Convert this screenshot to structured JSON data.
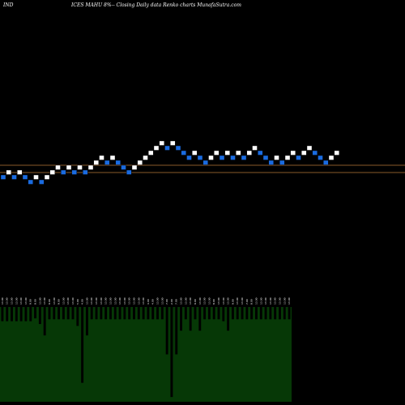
{
  "header": {
    "left": "IND",
    "title": "ICES MAHU 8%--  Closing Daily data  Renko  charts MunafaSutra.com"
  },
  "colors": {
    "background": "#000000",
    "up_brick": "#ffffff",
    "down_brick": "#1a6be0",
    "guide_line": "#8a5a2a",
    "volume_fill": "#063806",
    "volume_edge": "#0a5a0a",
    "volume_label": "#ffffff"
  },
  "chart_data": [
    {
      "type": "renko",
      "title": "ICES MAHU 8%--  Closing Daily data  Renko  charts MunafaSutra.com",
      "note": "brick level in brick-size units, relative to the first brick; dir up/down",
      "bricks": [
        {
          "level": 0,
          "dir": "down"
        },
        {
          "level": 1,
          "dir": "up"
        },
        {
          "level": 0,
          "dir": "down"
        },
        {
          "level": 1,
          "dir": "up"
        },
        {
          "level": 0,
          "dir": "down"
        },
        {
          "level": -1,
          "dir": "down"
        },
        {
          "level": 0,
          "dir": "up"
        },
        {
          "level": -1,
          "dir": "down"
        },
        {
          "level": 0,
          "dir": "up"
        },
        {
          "level": 1,
          "dir": "up"
        },
        {
          "level": 2,
          "dir": "up"
        },
        {
          "level": 1,
          "dir": "down"
        },
        {
          "level": 2,
          "dir": "up"
        },
        {
          "level": 1,
          "dir": "down"
        },
        {
          "level": 2,
          "dir": "up"
        },
        {
          "level": 1,
          "dir": "down"
        },
        {
          "level": 2,
          "dir": "up"
        },
        {
          "level": 3,
          "dir": "up"
        },
        {
          "level": 4,
          "dir": "up"
        },
        {
          "level": 3,
          "dir": "down"
        },
        {
          "level": 4,
          "dir": "up"
        },
        {
          "level": 3,
          "dir": "down"
        },
        {
          "level": 2,
          "dir": "down"
        },
        {
          "level": 1,
          "dir": "down"
        },
        {
          "level": 2,
          "dir": "up"
        },
        {
          "level": 3,
          "dir": "up"
        },
        {
          "level": 4,
          "dir": "up"
        },
        {
          "level": 5,
          "dir": "up"
        },
        {
          "level": 6,
          "dir": "up"
        },
        {
          "level": 7,
          "dir": "up"
        },
        {
          "level": 6,
          "dir": "down"
        },
        {
          "level": 7,
          "dir": "up"
        },
        {
          "level": 6,
          "dir": "down"
        },
        {
          "level": 5,
          "dir": "down"
        },
        {
          "level": 4,
          "dir": "down"
        },
        {
          "level": 5,
          "dir": "up"
        },
        {
          "level": 4,
          "dir": "down"
        },
        {
          "level": 3,
          "dir": "down"
        },
        {
          "level": 4,
          "dir": "up"
        },
        {
          "level": 5,
          "dir": "up"
        },
        {
          "level": 4,
          "dir": "down"
        },
        {
          "level": 5,
          "dir": "up"
        },
        {
          "level": 4,
          "dir": "down"
        },
        {
          "level": 5,
          "dir": "up"
        },
        {
          "level": 4,
          "dir": "down"
        },
        {
          "level": 5,
          "dir": "up"
        },
        {
          "level": 6,
          "dir": "up"
        },
        {
          "level": 5,
          "dir": "down"
        },
        {
          "level": 4,
          "dir": "down"
        },
        {
          "level": 3,
          "dir": "down"
        },
        {
          "level": 4,
          "dir": "up"
        },
        {
          "level": 3,
          "dir": "down"
        },
        {
          "level": 4,
          "dir": "up"
        },
        {
          "level": 5,
          "dir": "up"
        },
        {
          "level": 4,
          "dir": "down"
        },
        {
          "level": 5,
          "dir": "up"
        },
        {
          "level": 6,
          "dir": "up"
        },
        {
          "level": 5,
          "dir": "down"
        },
        {
          "level": 4,
          "dir": "down"
        },
        {
          "level": 3,
          "dir": "down"
        },
        {
          "level": 4,
          "dir": "up"
        },
        {
          "level": 5,
          "dir": "up"
        }
      ],
      "guide_levels": [
        2,
        0.5
      ]
    },
    {
      "type": "bar",
      "title": "volume",
      "note": "bars hang downward; depth in relative units (0-1)",
      "values": [
        0.15,
        0.15,
        0.15,
        0.15,
        0.15,
        0.15,
        0.15,
        0.12,
        0.18,
        0.3,
        0.13,
        0.13,
        0.13,
        0.13,
        0.13,
        0.13,
        0.2,
        0.8,
        0.3,
        0.13,
        0.13,
        0.13,
        0.13,
        0.13,
        0.13,
        0.13,
        0.13,
        0.13,
        0.13,
        0.13,
        0.13,
        0.13,
        0.13,
        0.13,
        0.13,
        0.5,
        0.95,
        0.5,
        0.25,
        0.13,
        0.25,
        0.13,
        0.25,
        0.13,
        0.13,
        0.13,
        0.13,
        0.15,
        0.25,
        0.13,
        0.13,
        0.13,
        0.13,
        0.13,
        0.13,
        0.13,
        0.13,
        0.13,
        0.13,
        0.13,
        0.13,
        0.13
      ],
      "vol_labels": [
        "13.00",
        "13.00",
        "13.00",
        "13.00",
        "13.00",
        "13.00",
        "9.00",
        "8.00",
        "13.00",
        "13.00",
        "9.00",
        "13.00",
        "9.00",
        "13.00",
        "13.00",
        "13.00",
        "5.00",
        "4.00",
        "13.00",
        "13.00",
        "13.00",
        "13.00",
        "13.00",
        "13.00",
        "13.00",
        "13.00",
        "13.00",
        "13.00",
        "13.00",
        "13.00",
        "13.00",
        "4.00",
        "4.00",
        "13.00",
        "13.00",
        "7.00",
        "2.00",
        "7.00",
        "13.00",
        "13.00",
        "13.00",
        "9.00",
        "13.00",
        "13.00",
        "13.00",
        "8.00",
        "13.00",
        "13.00",
        "13.00",
        "9.00",
        "13.00",
        "13.00",
        "7.00",
        "8.00",
        "13.00",
        "13.00",
        "13.00",
        "13.00",
        "13.00",
        "13.00",
        "13.00",
        "13.00"
      ]
    }
  ]
}
